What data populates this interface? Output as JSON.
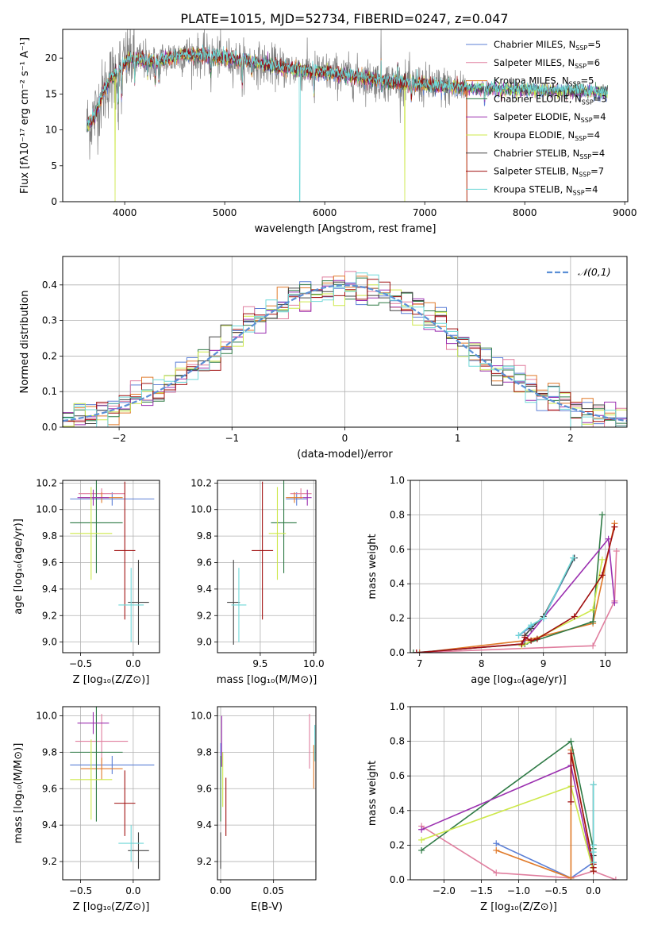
{
  "figure_title": "PLATE=1015, MJD=52734, FIBERID=0247, z=0.047",
  "colors": {
    "Chabrier MILES": "#5b7fd6",
    "Salpeter MILES": "#e07f9f",
    "Kroupa MILES": "#e07a2a",
    "Chabrier ELODIE": "#2e7a45",
    "Salpeter ELODIE": "#9b30b0",
    "Kroupa ELODIE": "#cde84a",
    "Chabrier STELIB": "#444444",
    "Salpeter STELIB": "#a01010",
    "Kroupa STELIB": "#6fd8d8"
  },
  "legend_spectrum": [
    {
      "key": "Chabrier MILES",
      "pre": "Chabrier MILES, N",
      "sub": "SSP",
      "post": "=5"
    },
    {
      "key": "Salpeter MILES",
      "pre": "Salpeter MILES, N",
      "sub": "SSP",
      "post": "=6"
    },
    {
      "key": "Kroupa MILES",
      "pre": "Kroupa MILES, N",
      "sub": "SSP",
      "post": "=5"
    },
    {
      "key": "Chabrier ELODIE",
      "pre": "Chabrier ELODIE, N",
      "sub": "SSP",
      "post": "=3"
    },
    {
      "key": "Salpeter ELODIE",
      "pre": "Salpeter ELODIE, N",
      "sub": "SSP",
      "post": "=4"
    },
    {
      "key": "Kroupa ELODIE",
      "pre": "Kroupa ELODIE, N",
      "sub": "SSP",
      "post": "=4"
    },
    {
      "key": "Chabrier STELIB",
      "pre": "Chabrier STELIB, N",
      "sub": "SSP",
      "post": "=4"
    },
    {
      "key": "Salpeter STELIB",
      "pre": "Salpeter STELIB, N",
      "sub": "SSP",
      "post": "=7"
    },
    {
      "key": "Kroupa STELIB",
      "pre": "Kroupa STELIB, N",
      "sub": "SSP",
      "post": "=4"
    }
  ],
  "chart_data": [
    {
      "id": "spectrum",
      "type": "line",
      "xlabel": "wavelength [Angstrom, rest frame]",
      "ylabel": "Flux [fλ10⁻¹⁷ erg cm⁻² s⁻¹ A⁻¹]",
      "xlim": [
        3380,
        9030
      ],
      "ylim": [
        0,
        24
      ],
      "xticks": [
        4000,
        5000,
        6000,
        7000,
        8000,
        9000
      ],
      "yticks": [
        0,
        5,
        10,
        15,
        20
      ],
      "continuum": [
        [
          3620,
          10.5
        ],
        [
          3700,
          12
        ],
        [
          3780,
          15
        ],
        [
          3850,
          17
        ],
        [
          3950,
          18.5
        ],
        [
          4050,
          20
        ],
        [
          4300,
          19.5
        ],
        [
          4600,
          20.5
        ],
        [
          4900,
          20.2
        ],
        [
          5200,
          19.6
        ],
        [
          5600,
          18.6
        ],
        [
          6000,
          18
        ],
        [
          6400,
          17.2
        ],
        [
          6800,
          16.5
        ],
        [
          7200,
          16
        ],
        [
          7420,
          15.8
        ]
      ],
      "data_end": 7420,
      "model_end": 8830,
      "model_cut_end": 7420,
      "absorption_features": [
        [
          3934,
          6
        ],
        [
          3969,
          5
        ],
        [
          4101,
          4
        ],
        [
          4227,
          2.5
        ],
        [
          4304,
          3.5
        ],
        [
          4340,
          3
        ],
        [
          4861,
          3
        ],
        [
          5175,
          4
        ],
        [
          5270,
          2
        ],
        [
          5893,
          4
        ],
        [
          6563,
          3
        ],
        [
          6867,
          2.5
        ],
        [
          7600,
          2
        ]
      ],
      "emission_features": [
        [
          6563,
          7
        ],
        [
          6730,
          4
        ]
      ],
      "dropouts": [
        [
          "Kroupa ELODIE",
          3905
        ],
        [
          "Kroupa STELIB",
          5750
        ],
        [
          "Kroupa ELODIE",
          6800
        ],
        [
          "Kroupa MILES",
          7420
        ]
      ]
    },
    {
      "id": "residuals",
      "type": "histogram",
      "xlabel": "(data-model)/error",
      "ylabel": "Normed distribution",
      "xlim": [
        -2.5,
        2.5
      ],
      "ylim": [
        0,
        0.48
      ],
      "xticks": [
        -2,
        -1,
        0,
        1,
        2
      ],
      "yticks": [
        0.0,
        0.1,
        0.2,
        0.3,
        0.4
      ],
      "bin_width": 0.1,
      "reference": {
        "label": "𝒩(0,1)",
        "mu": 0,
        "sigma": 1,
        "color": "#5b8fd6"
      }
    },
    {
      "id": "age-vs-Z",
      "type": "errorbar",
      "xlabel": "Z [log₁₀(Z/Z⊙)]",
      "ylabel": "age  [log₁₀(age/yr)]",
      "xlim": [
        -0.67,
        0.25
      ],
      "ylim": [
        8.92,
        10.22
      ],
      "xticks": [
        -0.5,
        0.0
      ],
      "yticks": [
        9.0,
        9.2,
        9.4,
        9.6,
        9.8,
        10.0,
        10.2
      ],
      "points": [
        {
          "key": "Chabrier MILES",
          "x": -0.2,
          "xerr": 0.4,
          "y": 10.08,
          "yerr": 0.05
        },
        {
          "key": "Salpeter MILES",
          "x": -0.3,
          "xerr": 0.22,
          "y": 10.12,
          "yerr": 0.04
        },
        {
          "key": "Kroupa MILES",
          "x": -0.3,
          "xerr": 0.2,
          "y": 10.09,
          "yerr": 0.04
        },
        {
          "key": "Chabrier ELODIE",
          "x": -0.35,
          "xerr": 0.25,
          "y": 9.9,
          "yerr": 0.38
        },
        {
          "key": "Salpeter ELODIE",
          "x": -0.38,
          "xerr": 0.15,
          "y": 10.09,
          "yerr": 0.06
        },
        {
          "key": "Kroupa ELODIE",
          "x": -0.4,
          "xerr": 0.2,
          "y": 9.82,
          "yerr": 0.35
        },
        {
          "key": "Chabrier STELIB",
          "x": 0.05,
          "xerr": 0.1,
          "y": 9.3,
          "yerr": 0.32
        },
        {
          "key": "Salpeter STELIB",
          "x": -0.08,
          "xerr": 0.1,
          "y": 9.69,
          "yerr": 0.52
        },
        {
          "key": "Kroupa STELIB",
          "x": -0.02,
          "xerr": 0.12,
          "y": 9.28,
          "yerr": 0.28
        }
      ]
    },
    {
      "id": "age-vs-mass",
      "type": "errorbar",
      "xlabel": "mass [log₁₀(M/M⊙)]",
      "ylabel": "",
      "xlim": [
        9.1,
        10.02
      ],
      "ylim": [
        8.92,
        10.22
      ],
      "xticks": [
        9.5,
        10.0
      ],
      "yticks": [
        9.0,
        9.2,
        9.4,
        9.6,
        9.8,
        10.0,
        10.2
      ],
      "points": [
        {
          "key": "Chabrier MILES",
          "x": 9.84,
          "xerr": 0.1,
          "y": 10.08,
          "yerr": 0.05
        },
        {
          "key": "Salpeter MILES",
          "x": 9.88,
          "xerr": 0.1,
          "y": 10.12,
          "yerr": 0.04
        },
        {
          "key": "Kroupa MILES",
          "x": 9.82,
          "xerr": 0.08,
          "y": 10.09,
          "yerr": 0.04
        },
        {
          "key": "Chabrier ELODIE",
          "x": 9.72,
          "xerr": 0.12,
          "y": 9.9,
          "yerr": 0.38
        },
        {
          "key": "Salpeter ELODIE",
          "x": 9.94,
          "xerr": 0.04,
          "y": 10.09,
          "yerr": 0.06
        },
        {
          "key": "Kroupa ELODIE",
          "x": 9.66,
          "xerr": 0.08,
          "y": 9.82,
          "yerr": 0.35
        },
        {
          "key": "Chabrier STELIB",
          "x": 9.25,
          "xerr": 0.06,
          "y": 9.3,
          "yerr": 0.32
        },
        {
          "key": "Salpeter STELIB",
          "x": 9.52,
          "xerr": 0.1,
          "y": 9.69,
          "yerr": 0.52
        },
        {
          "key": "Kroupa STELIB",
          "x": 9.3,
          "xerr": 0.07,
          "y": 9.28,
          "yerr": 0.28
        }
      ]
    },
    {
      "id": "weight-vs-age",
      "type": "line",
      "xlabel": "age  [log₁₀(age/yr)]",
      "ylabel": "mass weight",
      "xlim": [
        6.85,
        10.35
      ],
      "ylim": [
        0,
        1
      ],
      "xticks": [
        7,
        8,
        9,
        10
      ],
      "yticks": [
        0.0,
        0.2,
        0.4,
        0.6,
        0.8,
        1.0
      ],
      "series": [
        {
          "key": "Chabrier MILES",
          "points": [
            [
              8.6,
              0.1
            ],
            [
              8.8,
              0.15
            ],
            [
              9.0,
              0.2
            ],
            [
              9.5,
              0.55
            ]
          ]
        },
        {
          "key": "Salpeter MILES",
          "points": [
            [
              6.9,
              0.0
            ],
            [
              9.8,
              0.04
            ],
            [
              10.15,
              0.3
            ],
            [
              10.18,
              0.59
            ]
          ]
        },
        {
          "key": "Kroupa MILES",
          "points": [
            [
              7.0,
              0.0
            ],
            [
              8.7,
              0.07
            ],
            [
              9.8,
              0.17
            ],
            [
              10.15,
              0.75
            ]
          ]
        },
        {
          "key": "Chabrier ELODIE",
          "points": [
            [
              6.9,
              0.0
            ],
            [
              8.7,
              0.05
            ],
            [
              9.8,
              0.18
            ],
            [
              9.95,
              0.8
            ]
          ]
        },
        {
          "key": "Salpeter ELODIE",
          "points": [
            [
              6.95,
              0.0
            ],
            [
              8.65,
              0.05
            ],
            [
              10.05,
              0.66
            ],
            [
              10.15,
              0.29
            ]
          ]
        },
        {
          "key": "Kroupa ELODIE",
          "points": [
            [
              8.65,
              0.04
            ],
            [
              9.8,
              0.25
            ],
            [
              9.95,
              0.54
            ]
          ]
        },
        {
          "key": "Chabrier STELIB",
          "points": [
            [
              8.7,
              0.1
            ],
            [
              8.8,
              0.14
            ],
            [
              9.0,
              0.21
            ],
            [
              9.5,
              0.55
            ]
          ]
        },
        {
          "key": "Salpeter STELIB",
          "points": [
            [
              6.95,
              0.0
            ],
            [
              8.65,
              0.05
            ],
            [
              8.7,
              0.09
            ],
            [
              8.8,
              0.07
            ],
            [
              8.9,
              0.08
            ],
            [
              9.5,
              0.21
            ],
            [
              9.95,
              0.45
            ],
            [
              10.15,
              0.73
            ]
          ]
        },
        {
          "key": "Kroupa STELIB",
          "points": [
            [
              8.6,
              0.1
            ],
            [
              8.8,
              0.16
            ],
            [
              9.0,
              0.2
            ],
            [
              9.48,
              0.55
            ]
          ]
        }
      ]
    },
    {
      "id": "mass-vs-Z",
      "type": "errorbar",
      "xlabel": "Z [log₁₀(Z/Z⊙)]",
      "ylabel": "mass [log₁₀(M/M⊙)]",
      "xlim": [
        -0.67,
        0.25
      ],
      "ylim": [
        9.1,
        10.05
      ],
      "xticks": [
        -0.5,
        0.0
      ],
      "yticks": [
        9.2,
        9.4,
        9.6,
        9.8,
        10.0
      ],
      "points": [
        {
          "key": "Chabrier MILES",
          "x": -0.2,
          "xerr": 0.4,
          "y": 9.73,
          "yerr": 0.05
        },
        {
          "key": "Salpeter MILES",
          "x": -0.3,
          "xerr": 0.25,
          "y": 9.86,
          "yerr": 0.15
        },
        {
          "key": "Kroupa MILES",
          "x": -0.3,
          "xerr": 0.2,
          "y": 9.71,
          "yerr": 0.06
        },
        {
          "key": "Chabrier ELODIE",
          "x": -0.35,
          "xerr": 0.25,
          "y": 9.8,
          "yerr": 0.38
        },
        {
          "key": "Salpeter ELODIE",
          "x": -0.38,
          "xerr": 0.15,
          "y": 9.96,
          "yerr": 0.06
        },
        {
          "key": "Kroupa ELODIE",
          "x": -0.4,
          "xerr": 0.2,
          "y": 9.65,
          "yerr": 0.22
        },
        {
          "key": "Chabrier STELIB",
          "x": 0.05,
          "xerr": 0.1,
          "y": 9.26,
          "yerr": 0.1
        },
        {
          "key": "Salpeter STELIB",
          "x": -0.08,
          "xerr": 0.1,
          "y": 9.52,
          "yerr": 0.18
        },
        {
          "key": "Kroupa STELIB",
          "x": -0.02,
          "xerr": 0.12,
          "y": 9.3,
          "yerr": 0.1
        }
      ]
    },
    {
      "id": "mass-vs-EBV",
      "type": "errorbar",
      "xlabel": "E(B-V)",
      "ylabel": "",
      "xlim": [
        -0.003,
        0.09
      ],
      "ylim": [
        9.1,
        10.05
      ],
      "xticks": [
        0.0,
        0.05
      ],
      "yticks": [
        9.2,
        9.4,
        9.6,
        9.8,
        10.0
      ],
      "points": [
        {
          "key": "Chabrier MILES",
          "x": 0.0,
          "xerr": 0,
          "y": 9.75,
          "yerr": 0.1
        },
        {
          "key": "Salpeter MILES",
          "x": 0.084,
          "xerr": 0,
          "y": 9.86,
          "yerr": 0.15
        },
        {
          "key": "Kroupa MILES",
          "x": 0.088,
          "xerr": 0,
          "y": 9.72,
          "yerr": 0.12
        },
        {
          "key": "Chabrier ELODIE",
          "x": 0.0,
          "xerr": 0,
          "y": 9.6,
          "yerr": 0.18
        },
        {
          "key": "Salpeter ELODIE",
          "x": 0.001,
          "xerr": 0,
          "y": 9.86,
          "yerr": 0.14
        },
        {
          "key": "Kroupa ELODIE",
          "x": 0.002,
          "xerr": 0,
          "y": 9.65,
          "yerr": 0.15
        },
        {
          "key": "Chabrier STELIB",
          "x": 0.0,
          "xerr": 0,
          "y": 9.26,
          "yerr": 0.1
        },
        {
          "key": "Salpeter STELIB",
          "x": 0.005,
          "xerr": 0,
          "y": 9.5,
          "yerr": 0.16
        },
        {
          "key": "Kroupa STELIB",
          "x": 0.089,
          "xerr": 0,
          "y": 9.85,
          "yerr": 0.1
        }
      ]
    },
    {
      "id": "weight-vs-Z",
      "type": "line",
      "xlabel": "Z [log₁₀(Z/Z⊙)]",
      "ylabel": "mass weight",
      "xlim": [
        -2.45,
        0.45
      ],
      "ylim": [
        0,
        1
      ],
      "xticks": [
        -2.0,
        -1.5,
        -1.0,
        -0.5,
        0.0
      ],
      "yticks": [
        0.0,
        0.2,
        0.4,
        0.6,
        0.8,
        1.0
      ],
      "series": [
        {
          "key": "Chabrier MILES",
          "points": [
            [
              -1.3,
              0.21
            ],
            [
              -0.3,
              0.01
            ],
            [
              0.0,
              0.1
            ],
            [
              0.0,
              0.2
            ]
          ]
        },
        {
          "key": "Salpeter MILES",
          "points": [
            [
              -2.3,
              0.31
            ],
            [
              -1.3,
              0.04
            ],
            [
              -0.3,
              0.01
            ],
            [
              0.0,
              0.05
            ],
            [
              0.3,
              0.0
            ]
          ]
        },
        {
          "key": "Kroupa MILES",
          "points": [
            [
              -1.3,
              0.17
            ],
            [
              -0.3,
              0.01
            ],
            [
              -0.3,
              0.75
            ],
            [
              0.0,
              0.07
            ]
          ]
        },
        {
          "key": "Chabrier ELODIE",
          "points": [
            [
              -2.3,
              0.17
            ],
            [
              -0.3,
              0.8
            ],
            [
              0.0,
              0.18
            ]
          ]
        },
        {
          "key": "Salpeter ELODIE",
          "points": [
            [
              -2.3,
              0.29
            ],
            [
              -0.3,
              0.66
            ],
            [
              0.0,
              0.05
            ]
          ]
        },
        {
          "key": "Kroupa ELODIE",
          "points": [
            [
              -2.3,
              0.23
            ],
            [
              -0.3,
              0.54
            ],
            [
              0.0,
              0.05
            ]
          ]
        },
        {
          "key": "Chabrier STELIB",
          "points": [
            [
              0.0,
              0.55
            ],
            [
              0.0,
              0.2
            ],
            [
              0.0,
              0.14
            ],
            [
              0.0,
              0.1
            ]
          ]
        },
        {
          "key": "Salpeter STELIB",
          "points": [
            [
              -0.3,
              0.45
            ],
            [
              -0.3,
              0.73
            ],
            [
              0.0,
              0.09
            ],
            [
              0.0,
              0.07
            ],
            [
              0.0,
              0.05
            ]
          ]
        },
        {
          "key": "Kroupa STELIB",
          "points": [
            [
              0.0,
              0.55
            ],
            [
              0.0,
              0.2
            ],
            [
              0.0,
              0.16
            ],
            [
              0.0,
              0.1
            ]
          ]
        }
      ]
    }
  ]
}
